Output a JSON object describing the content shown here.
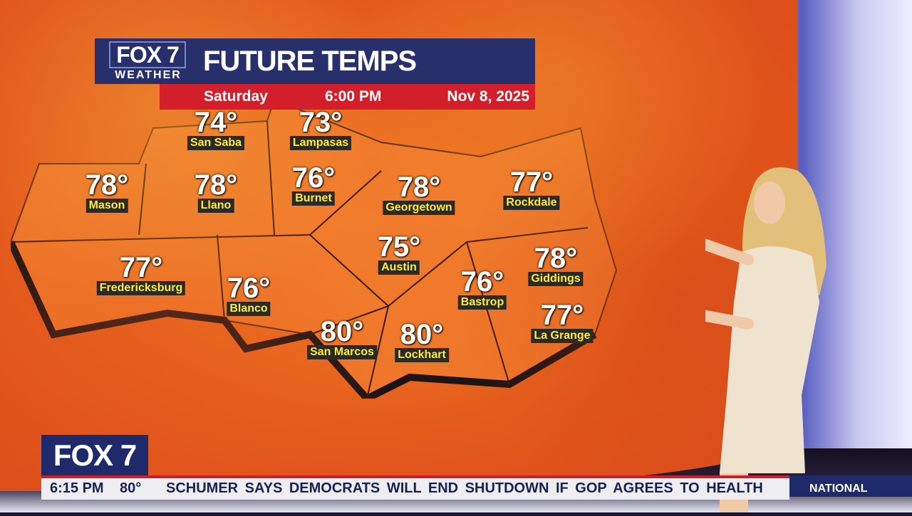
{
  "graphic": {
    "logo_top": "FOX 7",
    "logo_bottom": "WEATHER",
    "title": "FUTURE TEMPS",
    "day": "Saturday",
    "time": "6:00 PM",
    "date": "Nov 8, 2025"
  },
  "cities": [
    {
      "name": "San Saba",
      "temp": "74°"
    },
    {
      "name": "Lampasas",
      "temp": "73°"
    },
    {
      "name": "Mason",
      "temp": "78°"
    },
    {
      "name": "Llano",
      "temp": "78°"
    },
    {
      "name": "Burnet",
      "temp": "76°"
    },
    {
      "name": "Georgetown",
      "temp": "78°"
    },
    {
      "name": "Rockdale",
      "temp": "77°"
    },
    {
      "name": "Austin",
      "temp": "75°"
    },
    {
      "name": "Giddings",
      "temp": "78°"
    },
    {
      "name": "Fredericksburg",
      "temp": "77°"
    },
    {
      "name": "Blanco",
      "temp": "76°"
    },
    {
      "name": "Bastrop",
      "temp": "76°"
    },
    {
      "name": "La Grange",
      "temp": "77°"
    },
    {
      "name": "San Marcos",
      "temp": "80°"
    },
    {
      "name": "Lockhart",
      "temp": "80°"
    }
  ],
  "lower_third": {
    "logo": "FOX 7",
    "time": "6:15 PM",
    "current_temp": "80°",
    "headline": "SCHUMER SAYS DEMOCRATS WILL END SHUTDOWN IF GOP AGREES TO HEALTH",
    "category": "NATIONAL"
  },
  "colors": {
    "navy": "#27306b",
    "red": "#d21f2b",
    "label_text": "#ffeb3b",
    "map_orange": "#e9691f"
  }
}
